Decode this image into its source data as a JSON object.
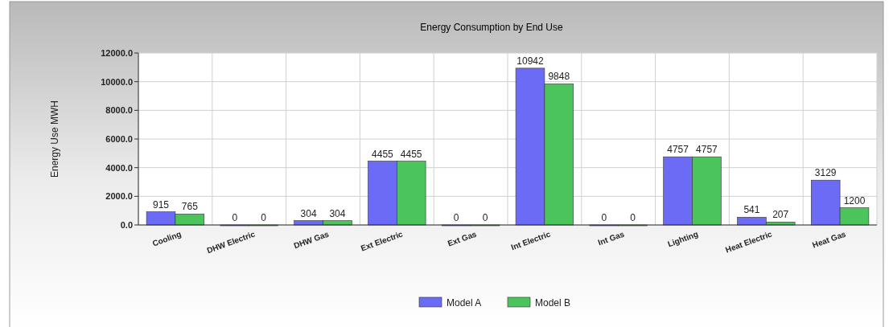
{
  "chart_data": {
    "type": "bar",
    "title": "Energy Consumption by End Use",
    "ylabel": "Energy Use MWH",
    "categories": [
      "Cooling",
      "DHW Electric",
      "DHW Gas",
      "Ext Electric",
      "Ext Gas",
      "Int Electric",
      "Int Gas",
      "Lighting",
      "Heat Electric",
      "Heat Gas"
    ],
    "series": [
      {
        "name": "Model A",
        "color": "#6b6bf5",
        "values": [
          915,
          0,
          304,
          4455,
          0,
          10942,
          0,
          4757,
          541,
          3129
        ]
      },
      {
        "name": "Model B",
        "color": "#4cc45c",
        "values": [
          765,
          0,
          304,
          4455,
          0,
          9848,
          0,
          4757,
          207,
          1200
        ]
      }
    ],
    "ylim": [
      0,
      12000
    ],
    "yticks": [
      {
        "value": 0,
        "label": "0.0"
      },
      {
        "value": 2000,
        "label": "2000.0"
      },
      {
        "value": 4000,
        "label": "4000.0"
      },
      {
        "value": 6000,
        "label": "6000.0"
      },
      {
        "value": 8000,
        "label": "8000.0"
      },
      {
        "value": 10000,
        "label": "10000.0"
      },
      {
        "value": 12000,
        "label": "12000.0"
      }
    ],
    "grid": true,
    "legend": "bottom",
    "data_labels": true
  }
}
